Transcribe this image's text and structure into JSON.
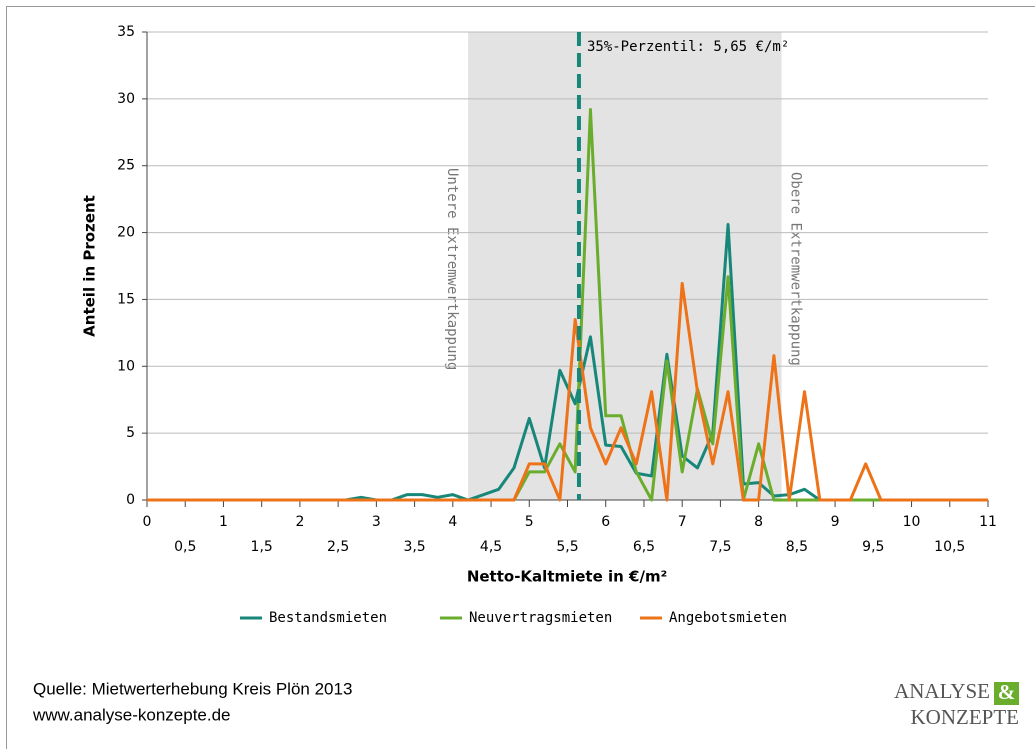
{
  "chart_data": {
    "type": "line",
    "y_label": "Anteil in Prozent",
    "x_label": "Netto-Kaltmiete in €/m²",
    "x": [
      0,
      0.2,
      0.4,
      0.6,
      0.8,
      1,
      1.2,
      1.4,
      1.6,
      1.8,
      2,
      2.2,
      2.4,
      2.6,
      2.8,
      3,
      3.2,
      3.4,
      3.6,
      3.8,
      4,
      4.2,
      4.4,
      4.6,
      4.8,
      5,
      5.2,
      5.4,
      5.6,
      5.8,
      6,
      6.2,
      6.4,
      6.6,
      6.8,
      7,
      7.2,
      7.4,
      7.6,
      7.8,
      8,
      8.2,
      8.4,
      8.6,
      8.8,
      9,
      9.2,
      9.4,
      9.6,
      9.8,
      10,
      10.2,
      10.4,
      10.6,
      10.8,
      11
    ],
    "series": [
      {
        "name": "Bestandsmieten",
        "color": "#17877a",
        "values": [
          0,
          0,
          0,
          0,
          0,
          0,
          0,
          0,
          0,
          0,
          0,
          0,
          0,
          0,
          0.2,
          0,
          0,
          0.4,
          0.4,
          0.2,
          0.4,
          0,
          0.4,
          0.8,
          2.4,
          6.1,
          2.4,
          9.7,
          7.2,
          12.2,
          4.1,
          4.0,
          2.0,
          1.8,
          10.9,
          3.3,
          2.4,
          5.0,
          20.6,
          1.2,
          1.3,
          0.3,
          0.4,
          0.8,
          0,
          0,
          0,
          0,
          0,
          0,
          0,
          0,
          0,
          0,
          0,
          0
        ]
      },
      {
        "name": "Neuvertragsmieten",
        "color": "#6aad2c",
        "values": [
          0,
          0,
          0,
          0,
          0,
          0,
          0,
          0,
          0,
          0,
          0,
          0,
          0,
          0,
          0,
          0,
          0,
          0,
          0,
          0,
          0,
          0,
          0,
          0,
          0,
          2.1,
          2.1,
          4.2,
          2.1,
          29.2,
          6.3,
          6.3,
          2.1,
          0,
          10.4,
          2.1,
          8.3,
          4.2,
          16.7,
          0,
          4.2,
          0,
          0,
          0,
          0,
          0,
          0,
          0,
          0,
          0,
          0,
          0,
          0,
          0,
          0,
          0
        ]
      },
      {
        "name": "Angebotsmieten",
        "color": "#ee7318",
        "values": [
          0,
          0,
          0,
          0,
          0,
          0,
          0,
          0,
          0,
          0,
          0,
          0,
          0,
          0,
          0,
          0,
          0,
          0,
          0,
          0,
          0,
          0,
          0,
          0,
          0,
          2.7,
          2.7,
          0,
          13.5,
          5.4,
          2.7,
          5.4,
          2.7,
          8.1,
          0,
          16.2,
          8.1,
          2.7,
          8.1,
          0,
          0,
          10.8,
          0,
          8.1,
          0,
          0,
          0,
          2.7,
          0,
          0,
          0,
          0,
          0,
          0,
          0,
          0
        ]
      }
    ],
    "xlim": [
      0,
      11
    ],
    "xticks": [
      0,
      {
        "value": 0.5,
        "label": "0,5"
      },
      1,
      {
        "value": 1.5,
        "label": "1,5"
      },
      2,
      {
        "value": 2.5,
        "label": "2,5"
      },
      3,
      {
        "value": 3.5,
        "label": "3,5"
      },
      4,
      {
        "value": 4.5,
        "label": "4,5"
      },
      5,
      {
        "value": 5.5,
        "label": "5,5"
      },
      6,
      {
        "value": 6.5,
        "label": "6,5"
      },
      7,
      {
        "value": 7.5,
        "label": "7,5"
      },
      8,
      {
        "value": 8.5,
        "label": "8,5"
      },
      9,
      {
        "value": 9.5,
        "label": "9,5"
      },
      10,
      {
        "value": 10.5,
        "label": "10,5"
      },
      11
    ],
    "ylim": [
      0,
      35
    ],
    "yticks": [
      0,
      5,
      10,
      15,
      20,
      25,
      30,
      35
    ],
    "grid": true,
    "band": {
      "xlim": [
        4.2,
        8.3
      ],
      "color": "#e3e3e3",
      "labels": [
        "Untere Extremwertkappung",
        "Obere Extremwertkappung"
      ]
    },
    "reference_line": {
      "x": 5.65,
      "label": "35%-Perzentil: 5,65 €/m²",
      "color": "#17877a"
    },
    "legend": "bottom"
  },
  "footer": {
    "source": [
      "Quelle: Mietwerterhebung Kreis Plön 2013",
      "www.analyse-konzepte.de"
    ],
    "logo": [
      "ANALYSE",
      "&",
      "KONZEPTE"
    ]
  }
}
